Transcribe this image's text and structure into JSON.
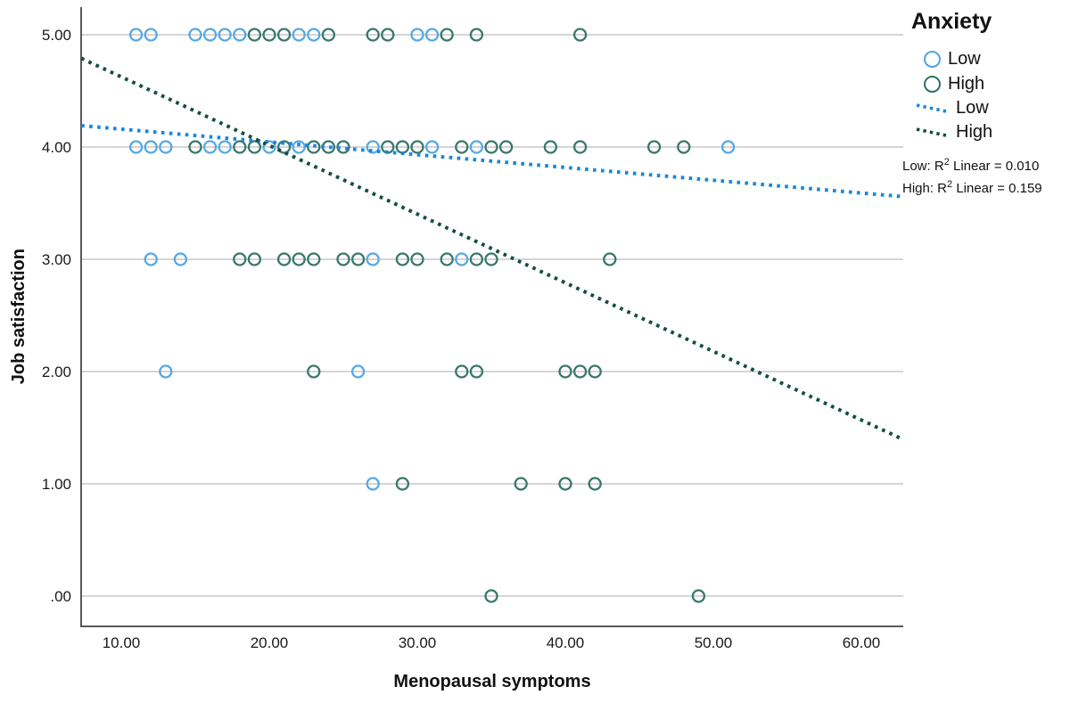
{
  "chart_data": {
    "type": "scatter",
    "title": "",
    "xlabel": "Menopausal symptoms",
    "ylabel": "Job satisfaction",
    "xlim": [
      7.3,
      62.8
    ],
    "ylim": [
      -0.27,
      5.25
    ],
    "grid": "horizontal",
    "xticks": [
      10,
      20,
      30,
      40,
      50,
      60
    ],
    "xtick_labels": [
      "10.00",
      "20.00",
      "30.00",
      "40.00",
      "50.00",
      "60.00"
    ],
    "yticks": [
      0,
      1,
      2,
      3,
      4,
      5
    ],
    "ytick_labels": [
      ".00",
      "1.00",
      "2.00",
      "3.00",
      "4.00",
      "5.00"
    ],
    "series": [
      {
        "name": "Low",
        "marker_color": "#4FA3E3",
        "points": [
          [
            11,
            5
          ],
          [
            12,
            5
          ],
          [
            15,
            5
          ],
          [
            16,
            5
          ],
          [
            17,
            5
          ],
          [
            18,
            5
          ],
          [
            22,
            5
          ],
          [
            23,
            5
          ],
          [
            30,
            5
          ],
          [
            31,
            5
          ],
          [
            11,
            4
          ],
          [
            12,
            4
          ],
          [
            13,
            4
          ],
          [
            16,
            4
          ],
          [
            17,
            4
          ],
          [
            20,
            4
          ],
          [
            22,
            4
          ],
          [
            27,
            4
          ],
          [
            31,
            4
          ],
          [
            34,
            4
          ],
          [
            51,
            4
          ],
          [
            12,
            3
          ],
          [
            14,
            3
          ],
          [
            27,
            3
          ],
          [
            33,
            3
          ],
          [
            13,
            2
          ],
          [
            26,
            2
          ],
          [
            27,
            1
          ]
        ]
      },
      {
        "name": "High",
        "marker_color": "#2E7164",
        "points": [
          [
            19,
            5
          ],
          [
            20,
            5
          ],
          [
            21,
            5
          ],
          [
            24,
            5
          ],
          [
            27,
            5
          ],
          [
            28,
            5
          ],
          [
            32,
            5
          ],
          [
            34,
            5
          ],
          [
            41,
            5
          ],
          [
            15,
            4
          ],
          [
            18,
            4
          ],
          [
            19,
            4
          ],
          [
            21,
            4
          ],
          [
            23,
            4
          ],
          [
            24,
            4
          ],
          [
            25,
            4
          ],
          [
            28,
            4
          ],
          [
            29,
            4
          ],
          [
            30,
            4
          ],
          [
            33,
            4
          ],
          [
            35,
            4
          ],
          [
            36,
            4
          ],
          [
            39,
            4
          ],
          [
            41,
            4
          ],
          [
            46,
            4
          ],
          [
            48,
            4
          ],
          [
            18,
            3
          ],
          [
            19,
            3
          ],
          [
            21,
            3
          ],
          [
            22,
            3
          ],
          [
            23,
            3
          ],
          [
            25,
            3
          ],
          [
            26,
            3
          ],
          [
            29,
            3
          ],
          [
            30,
            3
          ],
          [
            32,
            3
          ],
          [
            34,
            3
          ],
          [
            35,
            3
          ],
          [
            43,
            3
          ],
          [
            23,
            2
          ],
          [
            33,
            2
          ],
          [
            34,
            2
          ],
          [
            40,
            2
          ],
          [
            41,
            2
          ],
          [
            42,
            2
          ],
          [
            29,
            1
          ],
          [
            37,
            1
          ],
          [
            40,
            1
          ],
          [
            42,
            1
          ],
          [
            35,
            0
          ],
          [
            49,
            0
          ]
        ]
      }
    ],
    "fit_lines": [
      {
        "name": "Low",
        "color": "#1B86DF",
        "x1": 7.3,
        "y1": 4.19,
        "x2": 62.65,
        "y2": 3.56
      },
      {
        "name": "High",
        "color": "#124E44",
        "x1": 7.3,
        "y1": 4.79,
        "x2": 62.75,
        "y2": 1.4
      }
    ],
    "legend": {
      "title": "Anxiety",
      "circles": [
        {
          "label": "Low",
          "color": "#4FA3E3"
        },
        {
          "label": "High",
          "color": "#2E7164"
        }
      ],
      "lines": [
        {
          "label": "Low",
          "color": "#1B86DF"
        },
        {
          "label": "High",
          "color": "#124E44"
        }
      ],
      "annotations": [
        {
          "prefix": "Low: R",
          "sup": "2",
          "suffix": " Linear = 0.010"
        },
        {
          "prefix": "High: R",
          "sup": "2",
          "suffix": " Linear = 0.159"
        }
      ]
    },
    "colors": {
      "grid": "#C7C7C7",
      "axis": "#595959",
      "tick_text": "#1A1A1A"
    }
  }
}
